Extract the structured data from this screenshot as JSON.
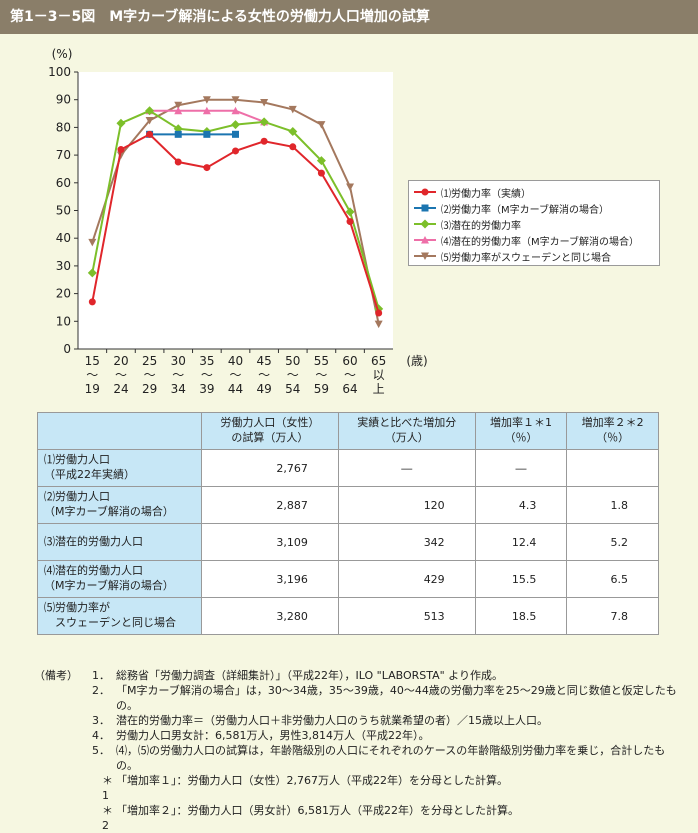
{
  "title": {
    "number": "第1－3－5図",
    "text": "M字カーブ解消による女性の労働力人口増加の試算"
  },
  "colors": {
    "title_bg": "#8a7e69",
    "page_bg": "#f6f7e1",
    "table_header_bg": "#c7e7f6"
  },
  "chart_data": {
    "type": "line",
    "y_unit": "(%)",
    "x_unit": "(歳)",
    "ylim": [
      0,
      100
    ],
    "yticks": [
      "0",
      "10",
      "20",
      "30",
      "40",
      "50",
      "60",
      "70",
      "80",
      "90",
      "100"
    ],
    "categories": [
      {
        "top": "15",
        "mid": "～",
        "bottom": "19"
      },
      {
        "top": "20",
        "mid": "～",
        "bottom": "24"
      },
      {
        "top": "25",
        "mid": "～",
        "bottom": "29"
      },
      {
        "top": "30",
        "mid": "～",
        "bottom": "34"
      },
      {
        "top": "35",
        "mid": "～",
        "bottom": "39"
      },
      {
        "top": "40",
        "mid": "～",
        "bottom": "44"
      },
      {
        "top": "45",
        "mid": "～",
        "bottom": "49"
      },
      {
        "top": "50",
        "mid": "～",
        "bottom": "54"
      },
      {
        "top": "55",
        "mid": "～",
        "bottom": "59"
      },
      {
        "top": "60",
        "mid": "～",
        "bottom": "64"
      },
      {
        "top": "65",
        "mid": "以",
        "bottom": "上"
      }
    ],
    "legend_position": "right",
    "grid": false,
    "series": [
      {
        "name": "⑴労働力率（実績）",
        "color": "#e0262b",
        "marker": "circle",
        "values": [
          17,
          72,
          77.5,
          67.5,
          65.5,
          71.5,
          75,
          73,
          63.5,
          46,
          13
        ]
      },
      {
        "name": "⑵労働力率（M字カーブ解消の場合）",
        "color": "#1b75b0",
        "marker": "square",
        "values": [
          null,
          null,
          77.5,
          77.5,
          77.5,
          77.5,
          null,
          null,
          null,
          null,
          null
        ]
      },
      {
        "name": "⑶潜在的労働力率",
        "color": "#7cbf2a",
        "marker": "diamond",
        "values": [
          27.5,
          81.5,
          86,
          79.5,
          78.5,
          81,
          82,
          78.5,
          68,
          49.5,
          14.5
        ]
      },
      {
        "name": "⑷潜在的労働力率（M字カーブ解消の場合）",
        "color": "#ee6fa8",
        "marker": "triangle",
        "values": [
          null,
          null,
          86,
          86,
          86,
          86,
          82,
          null,
          null,
          null,
          null
        ]
      },
      {
        "name": "⑸労働力率がスウェーデンと同じ場合",
        "color": "#a4785e",
        "marker": "triangle-down",
        "values": [
          38.5,
          70,
          82.5,
          88,
          90,
          90,
          89,
          86.5,
          81,
          58.5,
          9
        ]
      }
    ]
  },
  "table": {
    "headers": [
      "労働力人口（女性）\nの試算（万人）",
      "実績と比べた増加分\n（万人）",
      "増加率１＊1\n（％）",
      "増加率２＊2\n（％）"
    ],
    "rows": [
      {
        "label": "⑴労働力人口\n（平成22年実績）",
        "cells": [
          "2,767",
          "―",
          "―",
          ""
        ]
      },
      {
        "label": "⑵労働力人口\n（M字カーブ解消の場合）",
        "cells": [
          "2,887",
          "120",
          "4.3",
          "1.8"
        ]
      },
      {
        "label": "⑶潜在的労働力人口",
        "cells": [
          "3,109",
          "342",
          "12.4",
          "5.2"
        ]
      },
      {
        "label": "⑷潜在的労働力人口\n（M字カーブ解消の場合）",
        "cells": [
          "3,196",
          "429",
          "15.5",
          "6.5"
        ]
      },
      {
        "label": "⑸労働力率が\n　スウェーデンと同じ場合",
        "cells": [
          "3,280",
          "513",
          "18.5",
          "7.8"
        ]
      }
    ]
  },
  "notes": {
    "heading": "（備考）",
    "items": [
      {
        "num": "1．",
        "text": "総務省「労働力調査（詳細集計）」（平成22年），ILO \"LABORSTA\" より作成。"
      },
      {
        "num": "2．",
        "text": "「M字カーブ解消の場合」は，30～34歳，35～39歳，40～44歳の労働力率を25～29歳と同じ数値と仮定したもの。"
      },
      {
        "num": "3．",
        "text": "潜在的労働力率＝（労働力人口＋非労働力人口のうち就業希望の者）／15歳以上人口。"
      },
      {
        "num": "4．",
        "text": "労働力人口男女計：6,581万人，男性3,814万人（平成22年）。"
      },
      {
        "num": "5．",
        "text": "⑷，⑸の労働力人口の試算は，年齢階級別の人口にそれぞれのケースの年齢階級別労働力率を乗じ，合計したもの。"
      }
    ],
    "stars": [
      {
        "mark": "＊1",
        "text": "「増加率１」：労働力人口（女性）2,767万人（平成22年）を分母とした計算。"
      },
      {
        "mark": "＊2",
        "text": "「増加率２」：労働力人口（男女計）6,581万人（平成22年）を分母とした計算。"
      }
    ]
  }
}
